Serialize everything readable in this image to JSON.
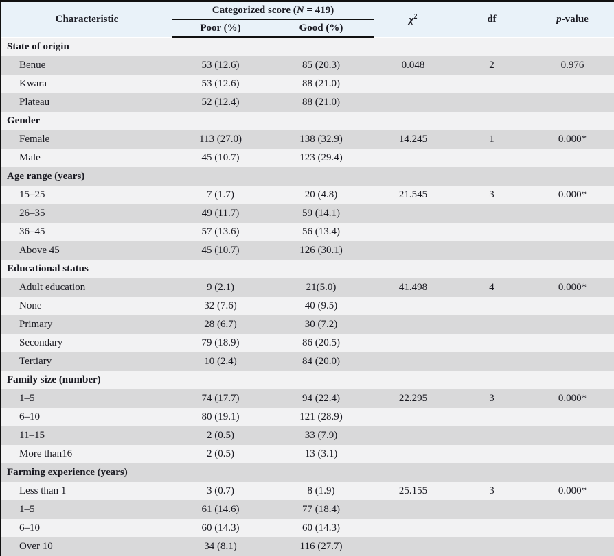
{
  "table": {
    "header": {
      "characteristic": "Characteristic",
      "span_pre": "Categorized score (",
      "span_n": "N",
      "span_post": " = 419)",
      "poor": "Poor (%)",
      "good": "Good (%)",
      "chi_symbol": "χ",
      "chi_exponent": "2",
      "df": "df",
      "p_italic": "p",
      "p_rest": "-value"
    },
    "colors": {
      "header_bg": "#e9f2f9",
      "row_light": "#f2f2f3",
      "row_gray": "#d9d9da",
      "border": "#111111",
      "text": "#1a1a22"
    },
    "rows": [
      {
        "type": "section",
        "label": "State of origin"
      },
      {
        "type": "data",
        "label": "Benue",
        "poor": "53 (12.6)",
        "good": "85 (20.3)",
        "chi2": "0.048",
        "df": "2",
        "p": "0.976"
      },
      {
        "type": "data",
        "label": "Kwara",
        "poor": "53 (12.6)",
        "good": "88 (21.0)",
        "chi2": "",
        "df": "",
        "p": ""
      },
      {
        "type": "data",
        "label": "Plateau",
        "poor": "52 (12.4)",
        "good": "88 (21.0)",
        "chi2": "",
        "df": "",
        "p": ""
      },
      {
        "type": "section",
        "label": "Gender"
      },
      {
        "type": "data",
        "label": "Female",
        "poor": "113 (27.0)",
        "good": "138 (32.9)",
        "chi2": "14.245",
        "df": "1",
        "p": "0.000*"
      },
      {
        "type": "data",
        "label": "Male",
        "poor": "45 (10.7)",
        "good": "123 (29.4)",
        "chi2": "",
        "df": "",
        "p": ""
      },
      {
        "type": "section",
        "label": "Age range (years)"
      },
      {
        "type": "data",
        "label": "15–25",
        "poor": "7 (1.7)",
        "good": "20 (4.8)",
        "chi2": "21.545",
        "df": "3",
        "p": "0.000*"
      },
      {
        "type": "data",
        "label": "26–35",
        "poor": "49 (11.7)",
        "good": "59 (14.1)",
        "chi2": "",
        "df": "",
        "p": ""
      },
      {
        "type": "data",
        "label": "36–45",
        "poor": "57 (13.6)",
        "good": "56 (13.4)",
        "chi2": "",
        "df": "",
        "p": ""
      },
      {
        "type": "data",
        "label": "Above 45",
        "poor": "45 (10.7)",
        "good": "126 (30.1)",
        "chi2": "",
        "df": "",
        "p": ""
      },
      {
        "type": "section",
        "label": "Educational status"
      },
      {
        "type": "data",
        "label": "Adult education",
        "poor": "9 (2.1)",
        "good": "21(5.0)",
        "chi2": "41.498",
        "df": "4",
        "p": "0.000*"
      },
      {
        "type": "data",
        "label": "None",
        "poor": "32 (7.6)",
        "good": "40 (9.5)",
        "chi2": "",
        "df": "",
        "p": ""
      },
      {
        "type": "data",
        "label": "Primary",
        "poor": "28 (6.7)",
        "good": "30 (7.2)",
        "chi2": "",
        "df": "",
        "p": ""
      },
      {
        "type": "data",
        "label": "Secondary",
        "poor": "79 (18.9)",
        "good": "86 (20.5)",
        "chi2": "",
        "df": "",
        "p": ""
      },
      {
        "type": "data",
        "label": "Tertiary",
        "poor": "10 (2.4)",
        "good": "84 (20.0)",
        "chi2": "",
        "df": "",
        "p": ""
      },
      {
        "type": "section",
        "label": "Family size (number)"
      },
      {
        "type": "data",
        "label": "1–5",
        "poor": "74 (17.7)",
        "good": "94 (22.4)",
        "chi2": "22.295",
        "df": "3",
        "p": "0.000*"
      },
      {
        "type": "data",
        "label": "6–10",
        "poor": "80 (19.1)",
        "good": "121 (28.9)",
        "chi2": "",
        "df": "",
        "p": ""
      },
      {
        "type": "data",
        "label": "11–15",
        "poor": "2 (0.5)",
        "good": "33 (7.9)",
        "chi2": "",
        "df": "",
        "p": ""
      },
      {
        "type": "data",
        "label": "More than16",
        "poor": "2 (0.5)",
        "good": "13 (3.1)",
        "chi2": "",
        "df": "",
        "p": ""
      },
      {
        "type": "section",
        "label": "Farming experience (years)"
      },
      {
        "type": "data",
        "label": "Less than 1",
        "poor": "3 (0.7)",
        "good": "8 (1.9)",
        "chi2": "25.155",
        "df": "3",
        "p": "0.000*"
      },
      {
        "type": "data",
        "label": "1–5",
        "poor": "61 (14.6)",
        "good": "77 (18.4)",
        "chi2": "",
        "df": "",
        "p": ""
      },
      {
        "type": "data",
        "label": "6–10",
        "poor": "60 (14.3)",
        "good": "60 (14.3)",
        "chi2": "",
        "df": "",
        "p": ""
      },
      {
        "type": "data",
        "label": "Over 10",
        "poor": "34 (8.1)",
        "good": "116 (27.7)",
        "chi2": "",
        "df": "",
        "p": ""
      }
    ]
  }
}
